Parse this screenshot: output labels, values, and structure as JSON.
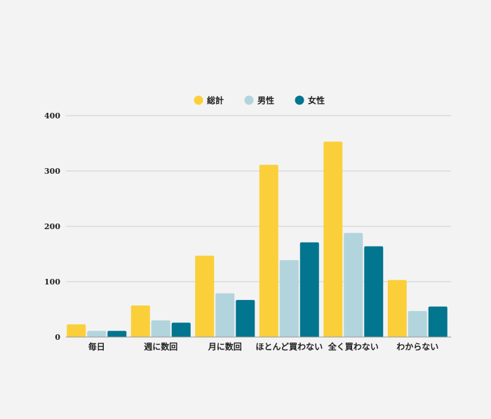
{
  "chart_data": {
    "type": "bar",
    "categories": [
      "毎日",
      "週に数回",
      "月に数回",
      "ほとんど買わない",
      "全く買わない",
      "わからない"
    ],
    "series": [
      {
        "name": "総計",
        "color": "#fbcf3a",
        "values": [
          23,
          57,
          147,
          311,
          353,
          103
        ]
      },
      {
        "name": "男性",
        "color": "#b2d4dd",
        "values": [
          11,
          30,
          79,
          139,
          188,
          47
        ]
      },
      {
        "name": "女性",
        "color": "#02758f",
        "values": [
          11,
          26,
          67,
          171,
          164,
          55
        ]
      }
    ],
    "ylim": [
      0,
      400
    ],
    "yticks": [
      0,
      100,
      200,
      300,
      400
    ],
    "grid": true,
    "legend_position": "top-center",
    "title": "",
    "xlabel": "",
    "ylabel": ""
  }
}
